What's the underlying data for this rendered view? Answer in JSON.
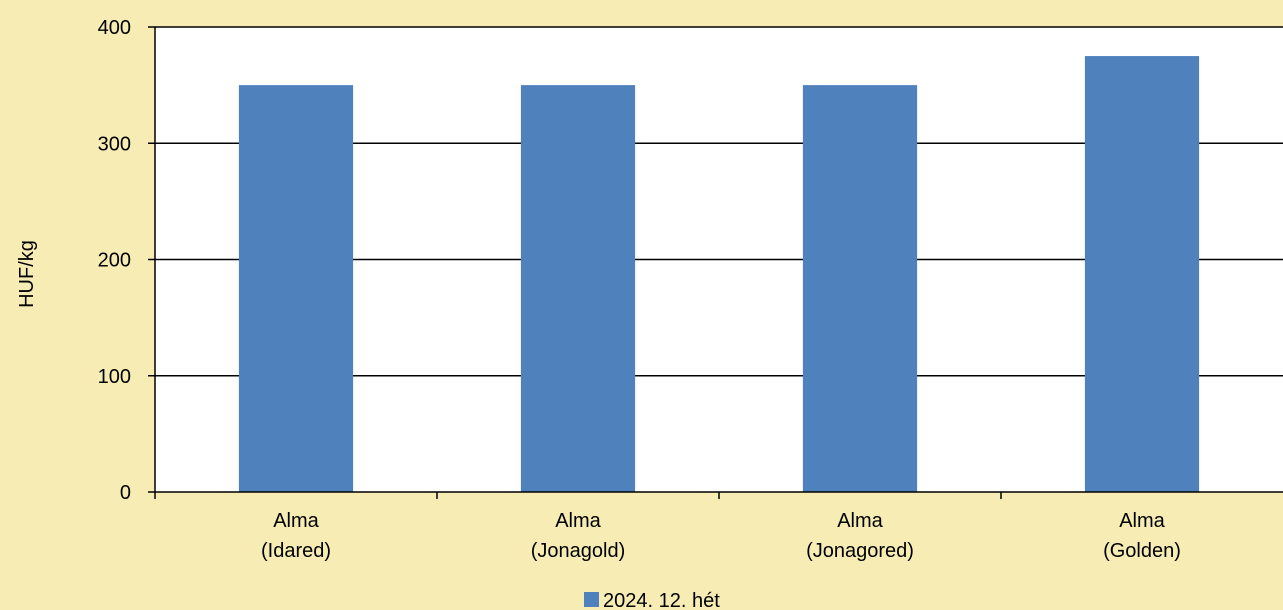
{
  "chart_data": {
    "type": "bar",
    "categories": [
      [
        "Alma",
        "(Idared)"
      ],
      [
        "Alma",
        "(Jonagold)"
      ],
      [
        "Alma",
        "(Jonagored)"
      ],
      [
        "Alma",
        "(Golden)"
      ]
    ],
    "series": [
      {
        "name": "2024. 12. hét",
        "color": "#4f81bd",
        "values": [
          350,
          350,
          350,
          375
        ]
      }
    ],
    "ylabel": "HUF/kg",
    "ylim": [
      0,
      400
    ],
    "yticks": [
      0,
      100,
      200,
      300,
      400
    ],
    "grid": true,
    "legend_position": "bottom",
    "background_color": "#f7edb4",
    "plot_background_color": "#ffffff"
  }
}
